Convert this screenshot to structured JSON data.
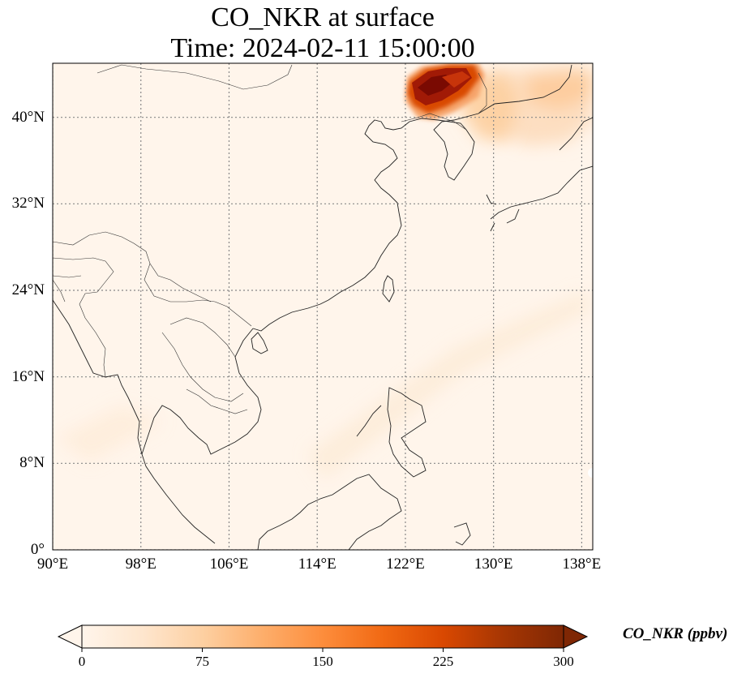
{
  "title": {
    "line1": "CO_NKR at surface",
    "line2": "Time: 2024-02-11 15:00:00"
  },
  "map": {
    "type": "heatmap",
    "extent": {
      "lon": [
        90,
        139
      ],
      "lat": [
        0,
        45
      ]
    },
    "gridlines": true,
    "lon_ticks": [
      90,
      98,
      106,
      114,
      122,
      130,
      138
    ],
    "lat_ticks": [
      0,
      8,
      16,
      24,
      32,
      40
    ],
    "lon_tick_labels": [
      "90°E",
      "98°E",
      "106°E",
      "114°E",
      "122°E",
      "130°E",
      "138°E"
    ],
    "lat_tick_labels": [
      "0°",
      "8°N",
      "16°N",
      "24°N",
      "32°N",
      "40°N"
    ],
    "plumes": [
      {
        "region": "NE China / North Korea border",
        "lon": [
          122,
          127
        ],
        "lat": [
          40,
          45
        ],
        "approx_value_ppbv": 300
      },
      {
        "region": "Northeast China / Korea",
        "lon": [
          127,
          132
        ],
        "lat": [
          38,
          44
        ],
        "approx_value_ppbv": 60
      },
      {
        "region": "Japan / Sea of Japan",
        "lon": [
          131,
          139
        ],
        "lat": [
          36,
          45
        ],
        "approx_value_ppbv": 40
      }
    ]
  },
  "colorbar": {
    "label": "CO_NKR (ppbv)",
    "min": 0,
    "max": 300,
    "ticks": [
      "0",
      "75",
      "150",
      "225",
      "300"
    ],
    "extend": "both",
    "colors": [
      "#fff5eb",
      "#fee6ce",
      "#fdd0a2",
      "#fdae6b",
      "#fd8d3c",
      "#f16913",
      "#d94801",
      "#a63603",
      "#7f2704"
    ]
  }
}
